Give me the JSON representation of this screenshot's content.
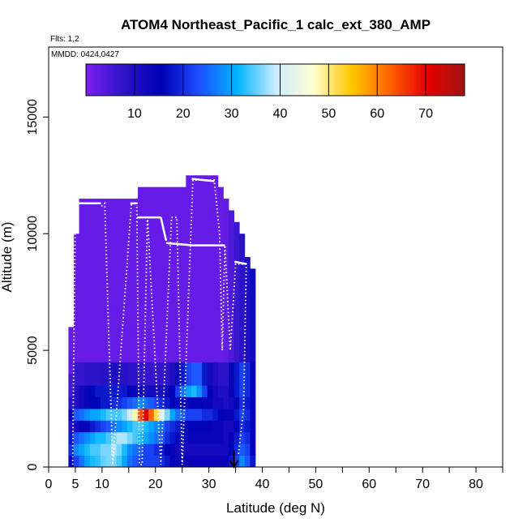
{
  "chart_data": {
    "type": "heatmap",
    "title": "ATOM4 Northeast_Pacific_1 calc_ext_380_AMP",
    "flights_label": "Flts: 1,2",
    "dates_label": "MMDD: 0424,0427",
    "xlabel": "Latitude (deg N)",
    "ylabel": "Altitude (m)",
    "xlim": [
      0,
      85
    ],
    "ylim": [
      0,
      18000
    ],
    "x_ticks": [
      0,
      5,
      10,
      20,
      30,
      40,
      50,
      60,
      70,
      80
    ],
    "x_minor_ticks": [
      15,
      25,
      35,
      45,
      55,
      65,
      75,
      85
    ],
    "y_ticks": [
      0,
      5000,
      10000,
      15000
    ],
    "colorbar": {
      "min": 0,
      "max": 78,
      "ticks": [
        10,
        20,
        30,
        40,
        50,
        60,
        70
      ],
      "colors": [
        "#7a1ff0",
        "#2d14c8",
        "#0000b4",
        "#1e50ff",
        "#00b4ff",
        "#c8ecff",
        "#ffffd2",
        "#ffc800",
        "#ff6400",
        "#e60000",
        "#a01414"
      ]
    },
    "marker_latitude": 34.7,
    "columns": [
      {
        "lat": 4.2,
        "top": 6000,
        "values": {
          "0": 14,
          "500": 20,
          "1000": 18,
          "1500": 10,
          "2000": 14,
          "2500": 8,
          "3000": 6,
          "4000": 3
        }
      },
      {
        "lat": 5.2,
        "top": 10000,
        "values": {
          "0": 22,
          "500": 28,
          "1000": 24,
          "1500": 12,
          "2000": 24,
          "2500": 10,
          "3000": 10,
          "3500": 7
        }
      },
      {
        "lat": 6.2,
        "top": 11500,
        "values": {
          "0": 26,
          "500": 30,
          "1000": 26,
          "1500": 14,
          "2000": 26,
          "2500": 12,
          "3000": 12,
          "3500": 7
        }
      },
      {
        "lat": 7.2,
        "top": 11500,
        "values": {
          "0": 30,
          "500": 32,
          "1000": 28,
          "1500": 16,
          "2000": 28,
          "2500": 14,
          "3000": 14,
          "3500": 8
        }
      },
      {
        "lat": 8.2,
        "top": 11500,
        "values": {
          "0": 32,
          "500": 34,
          "1000": 30,
          "1500": 18,
          "2000": 30,
          "2500": 16,
          "3000": 16,
          "3500": 8
        }
      },
      {
        "lat": 9.2,
        "top": 11500,
        "values": {
          "0": 33,
          "500": 34,
          "1000": 32,
          "1500": 20,
          "2000": 30,
          "2500": 16,
          "3000": 18,
          "3500": 8
        }
      },
      {
        "lat": 10.2,
        "top": 11500,
        "values": {
          "0": 35,
          "500": 36,
          "1000": 32,
          "1500": 22,
          "2000": 32,
          "2500": 18,
          "3000": 18,
          "3500": 9
        }
      },
      {
        "lat": 11.2,
        "top": 11500,
        "values": {
          "0": 36,
          "500": 36,
          "1000": 34,
          "1500": 24,
          "2000": 34,
          "2500": 18,
          "3000": 18,
          "3500": 9
        }
      },
      {
        "lat": 12.2,
        "top": 11500,
        "values": {
          "0": 36,
          "500": 38,
          "1000": 36,
          "1500": 26,
          "2000": 34,
          "2500": 20,
          "3000": 18,
          "3500": 10
        }
      },
      {
        "lat": 13.2,
        "top": 11500,
        "values": {
          "0": 34,
          "500": 36,
          "1000": 38,
          "1500": 28,
          "2000": 34,
          "2500": 20,
          "3000": 18,
          "3500": 10
        }
      },
      {
        "lat": 14.2,
        "top": 11500,
        "values": {
          "0": 30,
          "500": 32,
          "1000": 38,
          "1500": 30,
          "2000": 36,
          "2500": 22,
          "3000": 18,
          "3500": 9
        }
      },
      {
        "lat": 15.2,
        "top": 11500,
        "values": {
          "0": 26,
          "500": 28,
          "1000": 36,
          "1500": 32,
          "2000": 40,
          "2500": 24,
          "3000": 16,
          "3500": 8
        }
      },
      {
        "lat": 16.2,
        "top": 11500,
        "values": {
          "0": 24,
          "500": 26,
          "1000": 34,
          "1500": 34,
          "2000": 48,
          "2500": 26,
          "3000": 14,
          "3500": 8
        }
      },
      {
        "lat": 17.2,
        "top": 12000,
        "values": {
          "0": 22,
          "500": 24,
          "1000": 32,
          "1500": 34,
          "2000": 64,
          "2500": 28,
          "3000": 12,
          "3500": 7
        }
      },
      {
        "lat": 18.2,
        "top": 12000,
        "values": {
          "0": 22,
          "500": 22,
          "1000": 30,
          "1500": 32,
          "2000": 72,
          "2500": 26,
          "3000": 12,
          "3500": 7
        }
      },
      {
        "lat": 19.2,
        "top": 12000,
        "values": {
          "0": 22,
          "500": 22,
          "1000": 28,
          "1500": 30,
          "2000": 62,
          "2500": 24,
          "3000": 12,
          "3500": 7
        }
      },
      {
        "lat": 20.2,
        "top": 12000,
        "values": {
          "0": 22,
          "500": 20,
          "1000": 26,
          "1500": 28,
          "2000": 52,
          "2500": 22,
          "3000": 12,
          "3500": 7
        }
      },
      {
        "lat": 21.2,
        "top": 12000,
        "values": {
          "0": 20,
          "500": 18,
          "1000": 24,
          "1500": 26,
          "2000": 42,
          "2500": 20,
          "3000": 12,
          "3500": 7
        }
      },
      {
        "lat": 22.2,
        "top": 12000,
        "values": {
          "0": 18,
          "500": 16,
          "1000": 20,
          "1500": 22,
          "2000": 36,
          "2500": 18,
          "3000": 14,
          "3500": 8
        }
      },
      {
        "lat": 23.2,
        "top": 12000,
        "values": {
          "0": 16,
          "500": 14,
          "1000": 18,
          "1500": 20,
          "2000": 30,
          "2500": 16,
          "3000": 16,
          "3500": 10
        }
      },
      {
        "lat": 24.2,
        "top": 12000,
        "values": {
          "0": 14,
          "500": 12,
          "1000": 16,
          "1500": 18,
          "2000": 26,
          "2500": 14,
          "3000": 22,
          "3500": 14
        }
      },
      {
        "lat": 25.2,
        "top": 12000,
        "values": {
          "0": 14,
          "500": 12,
          "1000": 16,
          "1500": 16,
          "2000": 24,
          "2500": 14,
          "3000": 26,
          "3500": 18
        }
      },
      {
        "lat": 26.2,
        "top": 12500,
        "values": {
          "0": 14,
          "500": 12,
          "1000": 14,
          "1500": 16,
          "2000": 22,
          "2500": 14,
          "3000": 30,
          "3500": 22
        }
      },
      {
        "lat": 27.2,
        "top": 12500,
        "values": {
          "0": 14,
          "500": 12,
          "1000": 14,
          "1500": 16,
          "2000": 22,
          "2500": 16,
          "3000": 32,
          "3500": 24
        }
      },
      {
        "lat": 28.2,
        "top": 12500,
        "values": {
          "0": 14,
          "500": 12,
          "1000": 14,
          "1500": 16,
          "2000": 22,
          "2500": 16,
          "3000": 28,
          "3500": 24
        }
      },
      {
        "lat": 29.2,
        "top": 12500,
        "values": {
          "0": 14,
          "500": 12,
          "1000": 14,
          "1500": 16,
          "2000": 20,
          "2500": 14,
          "3000": 22,
          "3500": 18
        }
      },
      {
        "lat": 30.2,
        "top": 12500,
        "values": {
          "0": 14,
          "500": 12,
          "1000": 14,
          "1500": 16,
          "2000": 20,
          "2500": 14,
          "3000": 16,
          "3500": 12
        }
      },
      {
        "lat": 31.2,
        "top": 12500,
        "values": {
          "0": 14,
          "500": 12,
          "1000": 14,
          "1500": 14,
          "2000": 18,
          "2500": 12,
          "3000": 12,
          "3500": 10
        }
      },
      {
        "lat": 32.2,
        "top": 12000,
        "values": {
          "0": 14,
          "500": 12,
          "1000": 14,
          "1500": 14,
          "2000": 16,
          "2500": 12,
          "3000": 10,
          "3500": 8
        }
      },
      {
        "lat": 33.2,
        "top": 11500,
        "values": {
          "0": 14,
          "500": 12,
          "1000": 12,
          "1500": 12,
          "2000": 14,
          "2500": 10,
          "3000": 10,
          "3500": 8
        }
      },
      {
        "lat": 34.2,
        "top": 11000,
        "values": {
          "0": 18,
          "500": 16,
          "1000": 14,
          "1500": 12,
          "2000": 14,
          "2500": 12,
          "3000": 14,
          "3500": 14
        }
      },
      {
        "lat": 35.2,
        "top": 10500,
        "values": {
          "0": 22,
          "500": 20,
          "1000": 18,
          "1500": 16,
          "2000": 18,
          "2500": 16,
          "3000": 18,
          "3500": 18
        }
      },
      {
        "lat": 36.2,
        "top": 10000,
        "values": {
          "0": 28,
          "500": 24,
          "1000": 22,
          "1500": 20,
          "2000": 22,
          "2500": 20,
          "3000": 22,
          "3500": 22
        }
      },
      {
        "lat": 37.2,
        "top": 9000,
        "values": {
          "0": 24,
          "500": 22,
          "1000": 20,
          "1500": 18,
          "2000": 20,
          "2500": 18,
          "3000": 20,
          "3500": 20
        }
      },
      {
        "lat": 38.2,
        "top": 8500,
        "values": {
          "0": 18,
          "500": 16,
          "1000": 14,
          "1500": 14,
          "2000": 14,
          "2500": 14,
          "3000": 14,
          "3500": 14
        }
      }
    ],
    "flight_track": [
      [
        4.5,
        100
      ],
      [
        5.0,
        11300
      ],
      [
        9.5,
        11300
      ],
      [
        10.0,
        11200
      ],
      [
        10.5,
        11300
      ],
      [
        12.0,
        100
      ],
      [
        15.5,
        11300
      ],
      [
        16.5,
        11300
      ],
      [
        17.0,
        100
      ],
      [
        17.5,
        100
      ],
      [
        18.5,
        10700
      ],
      [
        21.0,
        100
      ],
      [
        23.0,
        10700
      ],
      [
        24.0,
        10700
      ],
      [
        25.0,
        100
      ],
      [
        27.0,
        12300
      ],
      [
        28.0,
        12300
      ],
      [
        31.0,
        12300
      ],
      [
        32.0,
        10000
      ],
      [
        32.5,
        5000
      ],
      [
        33.0,
        9500
      ],
      [
        34.0,
        5000
      ],
      [
        35.0,
        8700
      ],
      [
        37.0,
        8700
      ],
      [
        36.5,
        2500
      ],
      [
        35.5,
        500
      ]
    ],
    "cruise_legs": [
      [
        [
          4.8,
          11300
        ],
        [
          9.8,
          11300
        ]
      ],
      [
        [
          15.3,
          11300
        ],
        [
          16.6,
          11300
        ]
      ],
      [
        [
          16.6,
          10700
        ],
        [
          21.0,
          10700
        ]
      ],
      [
        [
          21.0,
          10700
        ],
        [
          22.0,
          9700
        ]
      ],
      [
        [
          22.0,
          9600
        ],
        [
          27.0,
          9500
        ]
      ],
      [
        [
          27.0,
          9500
        ],
        [
          33.0,
          9500
        ]
      ],
      [
        [
          26.8,
          12350
        ],
        [
          31.0,
          12250
        ]
      ],
      [
        [
          34.8,
          8800
        ],
        [
          37.0,
          8700
        ]
      ]
    ]
  }
}
